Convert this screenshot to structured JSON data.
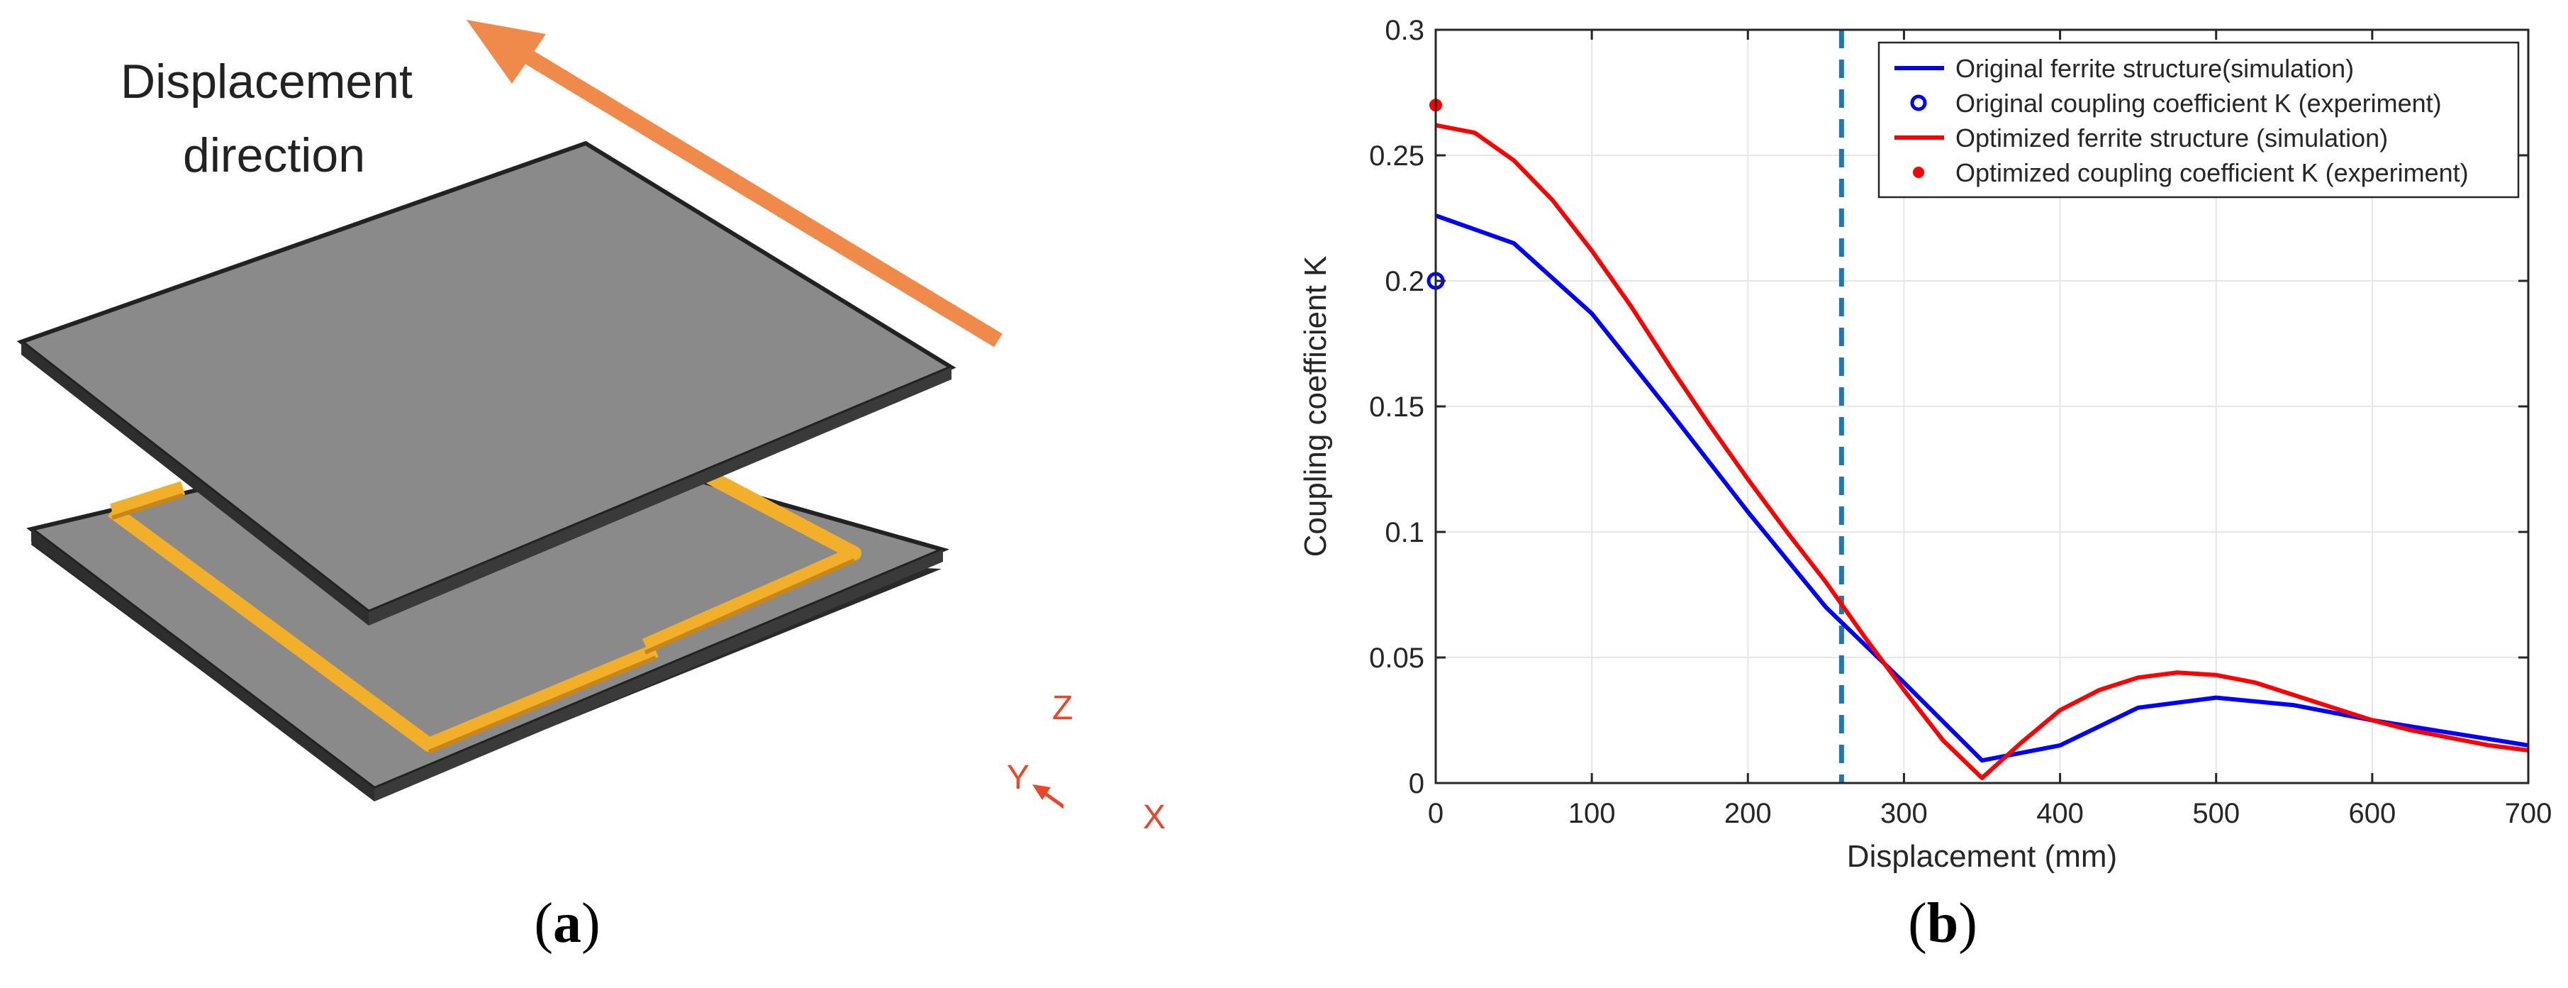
{
  "panel_a": {
    "label_letter": "a",
    "displacement_line1": "Displacement",
    "displacement_line2": "direction",
    "axis_z": "Z",
    "axis_y": "Y",
    "axis_x": "X",
    "colors": {
      "plate": "#888888",
      "plate_edge": "#2a2a2a",
      "coil": "#f2b02a",
      "arrow": "#f08a4b",
      "axes": "#e8472a"
    }
  },
  "panel_b": {
    "label_letter": "b"
  },
  "chart_data": {
    "type": "line",
    "title": "",
    "xlabel": "Displacement (mm)",
    "ylabel": "Coupling coefficient K",
    "xlim": [
      0,
      700
    ],
    "ylim": [
      0,
      0.3
    ],
    "xticks": [
      0,
      100,
      200,
      300,
      400,
      500,
      600,
      700
    ],
    "yticks": [
      0,
      0.05,
      0.1,
      0.15,
      0.2,
      0.25,
      0.3
    ],
    "xtick_labels": [
      "0",
      "100",
      "200",
      "300",
      "400",
      "500",
      "600",
      "700"
    ],
    "ytick_labels": [
      "0",
      "0.05",
      "0.1",
      "0.15",
      "0.2",
      "0.25",
      "0.3"
    ],
    "grid": true,
    "legend_position": "top-right",
    "vline": {
      "x": 260,
      "style": "dashed",
      "color": "#1f77b4"
    },
    "series": [
      {
        "name": "Original ferrite structure(simulation)",
        "kind": "line",
        "color": "#0000ff",
        "x": [
          0,
          50,
          100,
          150,
          200,
          250,
          300,
          350,
          400,
          450,
          500,
          550,
          600,
          650,
          700
        ],
        "values": [
          0.226,
          0.215,
          0.187,
          0.148,
          0.108,
          0.07,
          0.04,
          0.009,
          0.015,
          0.03,
          0.034,
          0.031,
          0.025,
          0.02,
          0.015
        ]
      },
      {
        "name": "Original coupling coefficient K (experiment)",
        "kind": "marker-open-circle",
        "color": "#0000ff",
        "x": [
          0
        ],
        "values": [
          0.2
        ]
      },
      {
        "name": "Optimized ferrite structure (simulation)",
        "kind": "line",
        "color": "#ff0000",
        "x": [
          0,
          25,
          50,
          75,
          100,
          125,
          150,
          175,
          200,
          225,
          250,
          275,
          300,
          325,
          350,
          375,
          400,
          425,
          450,
          475,
          500,
          525,
          550,
          575,
          600,
          625,
          650,
          675,
          700
        ],
        "values": [
          0.262,
          0.259,
          0.248,
          0.232,
          0.212,
          0.19,
          0.166,
          0.143,
          0.121,
          0.1,
          0.08,
          0.058,
          0.037,
          0.017,
          0.002,
          0.016,
          0.029,
          0.037,
          0.042,
          0.044,
          0.043,
          0.04,
          0.035,
          0.03,
          0.025,
          0.021,
          0.018,
          0.015,
          0.013
        ]
      },
      {
        "name": "Optimized coupling coefficient K (experiment)",
        "kind": "marker-filled-dot",
        "color": "#ff0000",
        "x": [
          0
        ],
        "values": [
          0.27
        ]
      }
    ]
  }
}
